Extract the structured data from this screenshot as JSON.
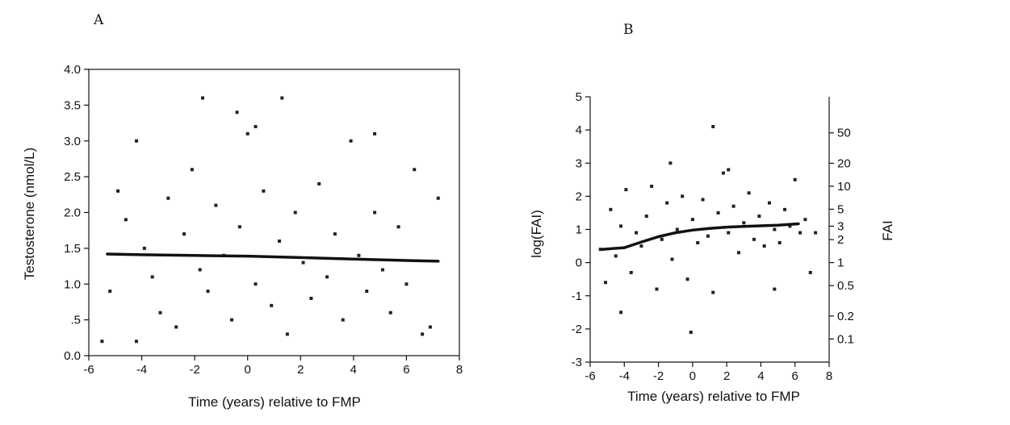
{
  "chart_data": [
    {
      "panel": "A",
      "type": "scatter",
      "xlabel": "Time (years) relative to FMP",
      "ylabel": "Testosterone (nmol/L)",
      "xlim": [
        -6,
        8
      ],
      "ylim": [
        0,
        4
      ],
      "xticks": [
        "-6",
        "-4",
        "-2",
        "0",
        "2",
        "4",
        "6",
        "8"
      ],
      "yticks": [
        "0.0",
        ".5",
        "1.0",
        "1.5",
        "2.0",
        "2.5",
        "3.0",
        "3.5",
        "4.0"
      ],
      "grid": false,
      "series": [
        {
          "kind": "points",
          "x": [
            -5.5,
            -5.2,
            -4.9,
            -4.6,
            -4.2,
            -3.9,
            -3.6,
            -3.3,
            -3.0,
            -2.7,
            -2.4,
            -2.1,
            -1.8,
            -1.5,
            -1.2,
            -0.9,
            -0.6,
            -0.3,
            0.0,
            0.3,
            0.6,
            0.9,
            1.2,
            1.5,
            1.8,
            2.1,
            2.4,
            2.7,
            3.0,
            3.3,
            3.6,
            3.9,
            4.2,
            4.5,
            4.8,
            5.1,
            5.4,
            5.7,
            6.0,
            6.3,
            6.6,
            6.9,
            7.2,
            -1.7,
            -0.4,
            1.3,
            4.8,
            -4.2,
            0.3
          ],
          "y": [
            0.2,
            0.9,
            2.3,
            1.9,
            0.2,
            1.5,
            1.1,
            0.6,
            2.2,
            0.4,
            1.7,
            2.6,
            1.2,
            0.9,
            2.1,
            1.4,
            0.5,
            1.8,
            3.1,
            1.0,
            2.3,
            0.7,
            1.6,
            0.3,
            2.0,
            1.3,
            0.8,
            2.4,
            1.1,
            1.7,
            0.5,
            3.0,
            1.4,
            0.9,
            2.0,
            1.2,
            0.6,
            1.8,
            1.0,
            2.6,
            0.3,
            0.4,
            2.2,
            3.6,
            3.4,
            3.6,
            3.1,
            3.0,
            3.2
          ]
        },
        {
          "kind": "smooth-line",
          "x": [
            -5.3,
            -4,
            -2,
            0,
            2,
            4,
            6,
            7.2
          ],
          "y": [
            1.42,
            1.41,
            1.4,
            1.39,
            1.37,
            1.35,
            1.33,
            1.32
          ]
        }
      ]
    },
    {
      "panel": "B",
      "type": "scatter",
      "xlabel": "Time (years) relative to FMP",
      "ylabel": "log(FAI)",
      "y2label": "FAI",
      "xlim": [
        -6,
        8
      ],
      "ylim": [
        -3,
        5
      ],
      "xticks": [
        "-6",
        "-4",
        "-2",
        "0",
        "2",
        "4",
        "6",
        "8"
      ],
      "yticks": [
        "-3",
        "-2",
        "-1",
        "0",
        "1",
        "2",
        "3",
        "4",
        "5"
      ],
      "y2ticks": [
        {
          "label": "0.1",
          "logvalue": -2.3026
        },
        {
          "label": "0.2",
          "logvalue": -1.6094
        },
        {
          "label": "0.5",
          "logvalue": -0.6931
        },
        {
          "label": "1",
          "logvalue": 0
        },
        {
          "label": "2",
          "logvalue": 0.6931
        },
        {
          "label": "3",
          "logvalue": 1.0986
        },
        {
          "label": "5",
          "logvalue": 1.6094
        },
        {
          "label": "10",
          "logvalue": 2.3026
        },
        {
          "label": "20",
          "logvalue": 2.9957
        },
        {
          "label": "50",
          "logvalue": 3.912
        }
      ],
      "grid": false,
      "series": [
        {
          "kind": "points",
          "x": [
            -5.4,
            -5.1,
            -4.8,
            -4.5,
            -4.2,
            -3.9,
            -3.6,
            -3.3,
            -3.0,
            -2.7,
            -2.4,
            -2.1,
            -1.8,
            -1.5,
            -1.2,
            -0.9,
            -0.6,
            -0.3,
            0.0,
            0.3,
            0.6,
            0.9,
            1.2,
            1.5,
            1.8,
            2.1,
            2.4,
            2.7,
            3.0,
            3.3,
            3.6,
            3.9,
            4.2,
            4.5,
            4.8,
            5.1,
            5.4,
            5.7,
            6.0,
            6.3,
            6.6,
            6.9,
            7.2,
            1.2,
            -0.1,
            -4.2,
            4.8,
            -1.3,
            2.1
          ],
          "y": [
            0.4,
            -0.6,
            1.6,
            0.2,
            1.1,
            2.2,
            -0.3,
            0.9,
            0.5,
            1.4,
            2.3,
            -0.8,
            0.7,
            1.8,
            0.1,
            1.0,
            2.0,
            -0.5,
            1.3,
            0.6,
            1.9,
            0.8,
            -0.9,
            1.5,
            2.7,
            0.9,
            1.7,
            0.3,
            1.2,
            2.1,
            0.7,
            1.4,
            0.5,
            1.8,
            1.0,
            0.6,
            1.6,
            1.1,
            2.5,
            0.9,
            1.3,
            -0.3,
            0.9,
            4.1,
            -2.1,
            -1.5,
            -0.8,
            3.0,
            2.8
          ]
        },
        {
          "kind": "smooth-line",
          "x": [
            -5.3,
            -4,
            -3,
            -2,
            -1,
            0,
            1,
            2,
            3,
            4,
            5,
            6.2
          ],
          "y": [
            0.4,
            0.45,
            0.62,
            0.78,
            0.9,
            0.98,
            1.03,
            1.07,
            1.09,
            1.11,
            1.13,
            1.17
          ]
        }
      ]
    }
  ]
}
